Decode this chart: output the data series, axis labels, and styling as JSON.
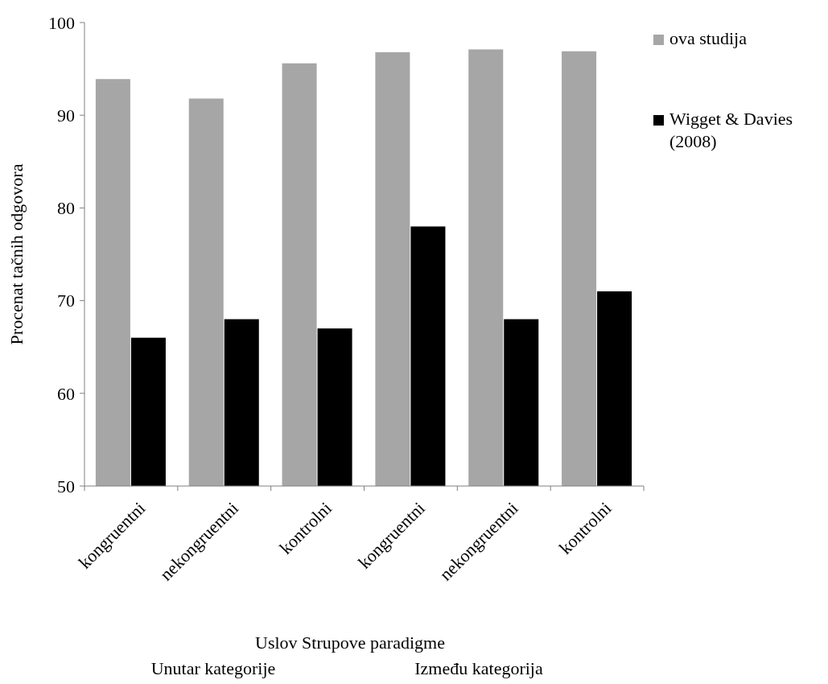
{
  "chart_data": {
    "type": "bar",
    "xlabel": "Uslov Strupove paradigme",
    "ylabel": "Procenat tačnih odgovora",
    "categories": [
      "kongruentni",
      "nekongruentni",
      "kontrolni",
      "kongruentni",
      "nekongruentni",
      "kontrolni"
    ],
    "series": [
      {
        "name": "ova studija",
        "color": "#a6a6a6",
        "values": [
          93.9,
          91.8,
          95.6,
          96.8,
          97.1,
          96.9
        ]
      },
      {
        "name": "Wigget & Davies (2008)",
        "color": "#000000",
        "values": [
          66,
          68,
          67,
          78,
          68,
          71
        ]
      }
    ],
    "ylim": [
      50,
      100
    ],
    "yticks": [
      50,
      60,
      70,
      80,
      90,
      100
    ],
    "grid": false,
    "legend": "top right",
    "annotations": [
      "Unutar kategorije",
      "Između kategorija"
    ]
  }
}
